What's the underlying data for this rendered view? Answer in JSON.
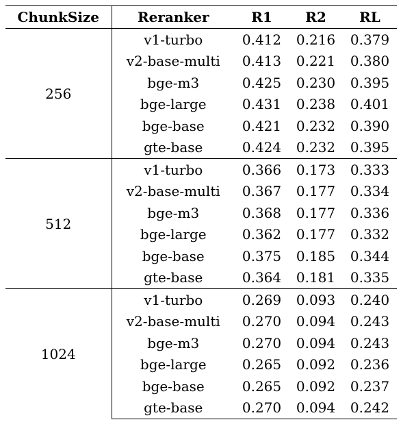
{
  "table": {
    "headers": [
      "ChunkSize",
      "Reranker",
      "R1",
      "R2",
      "RL"
    ],
    "groups": [
      {
        "chunk_size": "256",
        "rows": [
          {
            "reranker": "v1-turbo",
            "r1": "0.412",
            "r2": "0.216",
            "rl": "0.379"
          },
          {
            "reranker": "v2-base-multi",
            "r1": "0.413",
            "r2": "0.221",
            "rl": "0.380"
          },
          {
            "reranker": "bge-m3",
            "r1": "0.425",
            "r2": "0.230",
            "rl": "0.395"
          },
          {
            "reranker": "bge-large",
            "r1": "0.431",
            "r2": "0.238",
            "rl": "0.401"
          },
          {
            "reranker": "bge-base",
            "r1": "0.421",
            "r2": "0.232",
            "rl": "0.390"
          },
          {
            "reranker": "gte-base",
            "r1": "0.424",
            "r2": "0.232",
            "rl": "0.395"
          }
        ]
      },
      {
        "chunk_size": "512",
        "rows": [
          {
            "reranker": "v1-turbo",
            "r1": "0.366",
            "r2": "0.173",
            "rl": "0.333"
          },
          {
            "reranker": "v2-base-multi",
            "r1": "0.367",
            "r2": "0.177",
            "rl": "0.334"
          },
          {
            "reranker": "bge-m3",
            "r1": "0.368",
            "r2": "0.177",
            "rl": "0.336"
          },
          {
            "reranker": "bge-large",
            "r1": "0.362",
            "r2": "0.177",
            "rl": "0.332"
          },
          {
            "reranker": "bge-base",
            "r1": "0.375",
            "r2": "0.185",
            "rl": "0.344"
          },
          {
            "reranker": "gte-base",
            "r1": "0.364",
            "r2": "0.181",
            "rl": "0.335"
          }
        ]
      },
      {
        "chunk_size": "1024",
        "rows": [
          {
            "reranker": "v1-turbo",
            "r1": "0.269",
            "r2": "0.093",
            "rl": "0.240"
          },
          {
            "reranker": "v2-base-multi",
            "r1": "0.270",
            "r2": "0.094",
            "rl": "0.243"
          },
          {
            "reranker": "bge-m3",
            "r1": "0.270",
            "r2": "0.094",
            "rl": "0.243"
          },
          {
            "reranker": "bge-large",
            "r1": "0.265",
            "r2": "0.092",
            "rl": "0.236"
          },
          {
            "reranker": "bge-base",
            "r1": "0.265",
            "r2": "0.092",
            "rl": "0.237"
          },
          {
            "reranker": "gte-base",
            "r1": "0.270",
            "r2": "0.094",
            "rl": "0.242"
          }
        ]
      }
    ]
  }
}
